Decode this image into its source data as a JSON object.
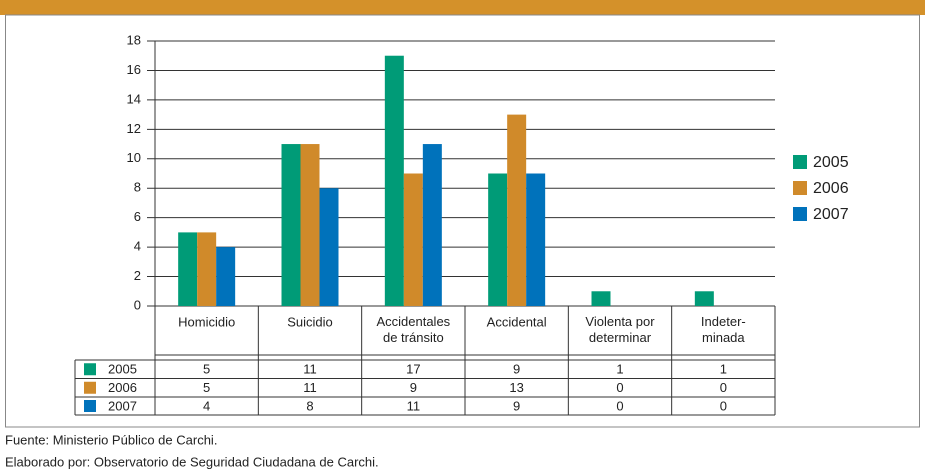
{
  "chart_data": {
    "type": "bar",
    "categories": [
      "Homicidio",
      "Suicidio",
      "Accidentales\nde tránsito",
      "Accidental",
      "Violenta por\ndeterminar",
      "Indeter-\nminada"
    ],
    "series": [
      {
        "name": "2005",
        "color": "#009b77",
        "values": [
          5,
          11,
          17,
          9,
          1,
          1
        ]
      },
      {
        "name": "2006",
        "color": "#d08a2a",
        "values": [
          5,
          11,
          9,
          13,
          0,
          0
        ]
      },
      {
        "name": "2007",
        "color": "#0072bb",
        "values": [
          4,
          8,
          11,
          9,
          0,
          0
        ]
      }
    ],
    "ylim": [
      0,
      18
    ],
    "yticks": [
      0,
      2,
      4,
      6,
      8,
      10,
      12,
      14,
      16,
      18
    ],
    "grid": true,
    "legend": "right",
    "footnotes": [
      "Fuente: Ministerio Público de Carchi.",
      "Elaborado por: Observatorio de Seguridad Ciudadana de Carchi."
    ]
  }
}
